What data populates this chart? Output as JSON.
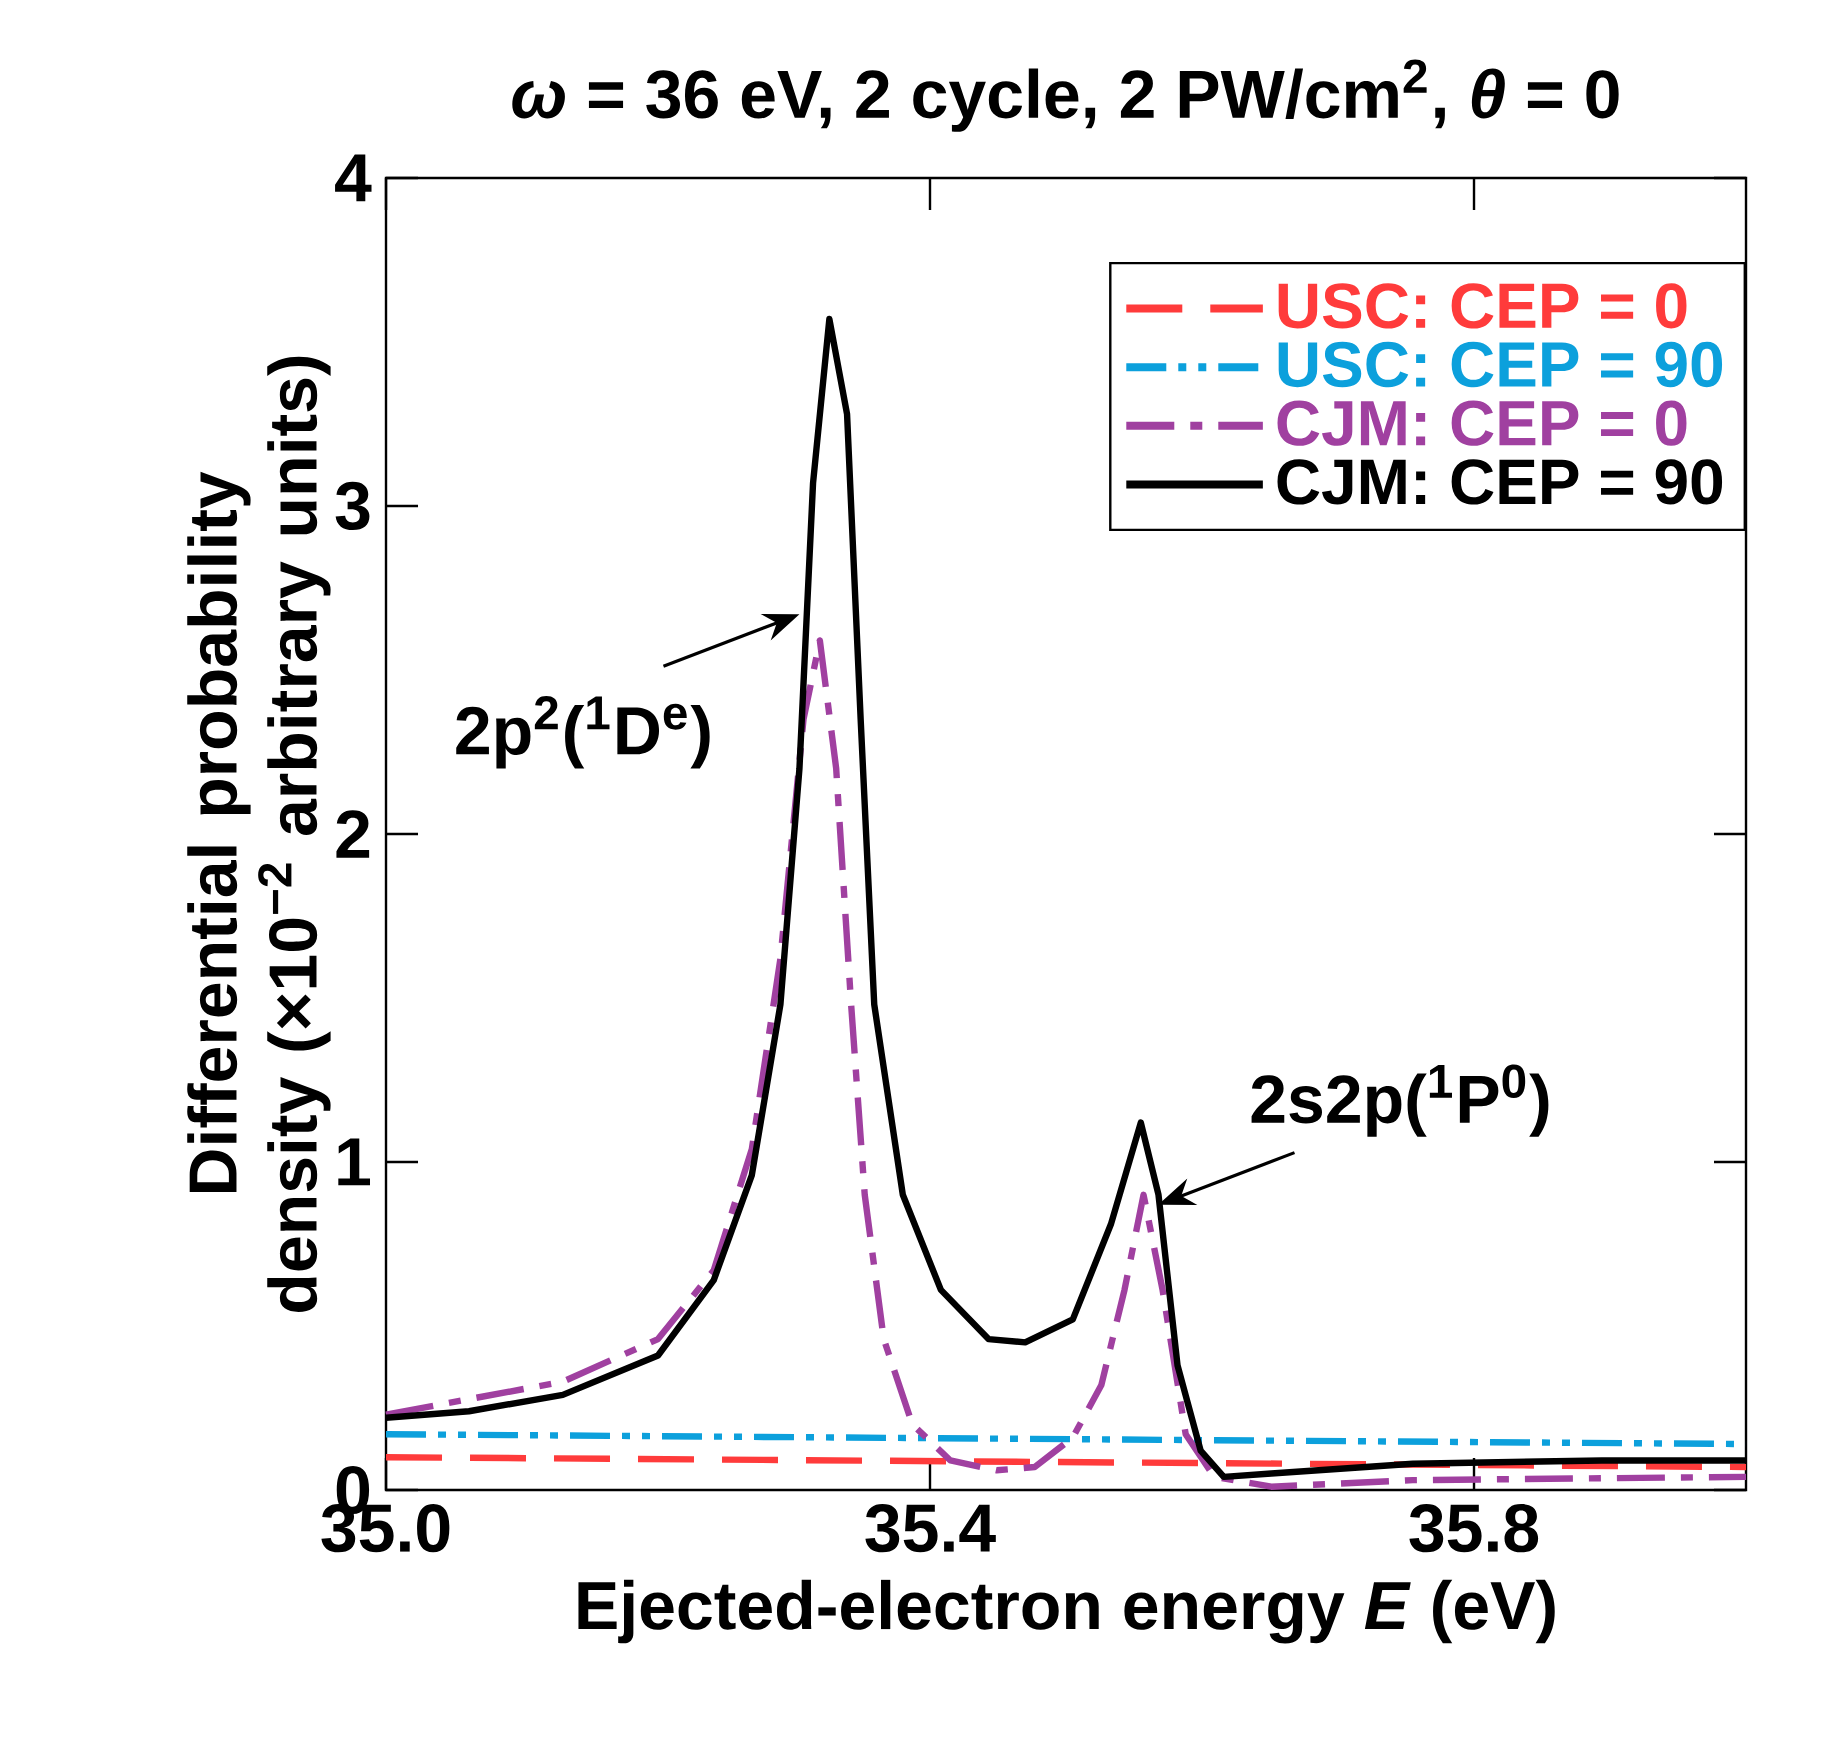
{
  "chart_data": {
    "type": "line",
    "title": "*ω* = 36 eV, 2 cycle, 2 PW/cm$^{2}$, *θ* = 0",
    "xlabel": "Ejected-electron energy *E* (eV)",
    "ylabel": "Differential probability density (×10$^{−2}$ arbitrary units)",
    "xlim": [
      35.0,
      36.0
    ],
    "ylim": [
      0,
      4
    ],
    "xticks": [
      {
        "value": 35.0,
        "label": "35.0"
      },
      35.4,
      35.8
    ],
    "yticks": [
      0,
      1,
      2,
      3,
      4
    ],
    "grid": false,
    "legend": "top right",
    "marker": "none",
    "series": [
      {
        "name": "USC: CEP = 0",
        "color": "#ff3b3b",
        "line_style": "dashed",
        "x": [
          35.0,
          36.0
        ],
        "values": [
          0.1,
          0.07
        ]
      },
      {
        "name": "USC: CEP = 90",
        "color": "#0ca0dc",
        "line_style": "dash-dot-dot",
        "x": [
          35.0,
          36.0
        ],
        "values": [
          0.17,
          0.14
        ]
      },
      {
        "name": "CJM: CEP = 0",
        "color": "#a040a0",
        "line_style": "dash-dot",
        "x": [
          35.0,
          35.13,
          35.2,
          35.241,
          35.269,
          35.29,
          35.307,
          35.319,
          35.331,
          35.342,
          35.352,
          35.366,
          35.387,
          35.415,
          35.449,
          35.477,
          35.505,
          35.526,
          35.543,
          35.557,
          35.571,
          35.588,
          35.609,
          35.651,
          35.755,
          36.0
        ],
        "values": [
          0.23,
          0.33,
          0.46,
          0.67,
          1.04,
          1.62,
          2.35,
          2.59,
          2.2,
          1.48,
          0.9,
          0.46,
          0.2,
          0.09,
          0.06,
          0.07,
          0.16,
          0.32,
          0.61,
          0.9,
          0.61,
          0.17,
          0.04,
          0.01,
          0.03,
          0.04
        ]
      },
      {
        "name": "CJM: CEP = 90",
        "color": "#000000",
        "line_style": "solid",
        "x": [
          35.0,
          35.061,
          35.13,
          35.2,
          35.241,
          35.269,
          35.29,
          35.304,
          35.314,
          35.326,
          35.339,
          35.349,
          35.359,
          35.38,
          35.408,
          35.443,
          35.47,
          35.505,
          35.533,
          35.555,
          35.568,
          35.582,
          35.599,
          35.616,
          35.651,
          35.755,
          35.894,
          36.0
        ],
        "values": [
          0.22,
          0.24,
          0.29,
          0.41,
          0.64,
          0.96,
          1.48,
          2.2,
          3.07,
          3.57,
          3.28,
          2.35,
          1.48,
          0.9,
          0.61,
          0.46,
          0.45,
          0.52,
          0.81,
          1.12,
          0.9,
          0.38,
          0.12,
          0.04,
          0.05,
          0.08,
          0.09,
          0.09
        ]
      }
    ],
    "annotations": [
      {
        "text": "2p$^{2}$($^{1}$D$^{e}$)",
        "x": 35.304,
        "y": 2.67
      },
      {
        "text": "2s2p($^{1}$P$^{0}$)",
        "x": 35.568,
        "y": 0.87
      }
    ]
  }
}
